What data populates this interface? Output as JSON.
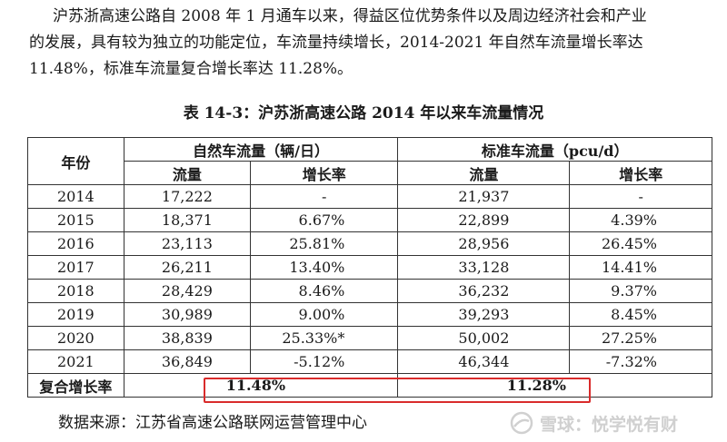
{
  "paragraph": {
    "line1": "沪苏浙高速公路自 2008 年 1 月通车以来，得益区位优势条件以及周边经济社会和产业",
    "line2": "的发展，具有较为独立的功能定位，车流量持续增长，2014-2021 年自然车流量增长率达",
    "line3": "11.48%，标准车流量复合增长率达 11.28%。"
  },
  "caption": "表 14-3：沪苏浙高速公路 2014 年以来车流量情况",
  "table": {
    "header_year": "年份",
    "header_natural": "自然车流量（辆/日）",
    "header_standard": "标准车流量（pcu/d）",
    "sub_flow": "流量",
    "sub_rate": "增长率",
    "rows": [
      {
        "year": "2014",
        "natural_flow": "17,222",
        "natural_rate": "-",
        "standard_flow": "21,937",
        "standard_rate": "-"
      },
      {
        "year": "2015",
        "natural_flow": "18,371",
        "natural_rate": "6.67%",
        "standard_flow": "22,899",
        "standard_rate": "4.39%"
      },
      {
        "year": "2016",
        "natural_flow": "23,113",
        "natural_rate": "25.81%",
        "standard_flow": "28,956",
        "standard_rate": "26.45%"
      },
      {
        "year": "2017",
        "natural_flow": "26,211",
        "natural_rate": "13.40%",
        "standard_flow": "33,128",
        "standard_rate": "14.41%"
      },
      {
        "year": "2018",
        "natural_flow": "28,429",
        "natural_rate": "8.46%",
        "standard_flow": "36,232",
        "standard_rate": "9.37%"
      },
      {
        "year": "2019",
        "natural_flow": "30,989",
        "natural_rate": "9.00%",
        "standard_flow": "39,293",
        "standard_rate": "8.45%"
      },
      {
        "year": "2020",
        "natural_flow": "38,839",
        "natural_rate": "25.33%*",
        "standard_flow": "50,002",
        "standard_rate": "27.25%"
      },
      {
        "year": "2021",
        "natural_flow": "36,849",
        "natural_rate": "-5.12%",
        "standard_flow": "46,344",
        "standard_rate": "-7.32%"
      }
    ],
    "cagr_label": "复合增长率",
    "cagr_natural": "11.48%",
    "cagr_standard": "11.28%"
  },
  "source": "数据来源：江苏省高速公路联网运营管理中心",
  "watermark": {
    "brand": "雪球：悦学悦有财",
    "icon": "snowball-logo-icon"
  },
  "colors": {
    "highlight_border": "#d92b2b",
    "watermark": "#d0d0d0"
  }
}
